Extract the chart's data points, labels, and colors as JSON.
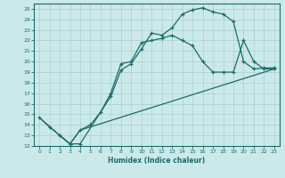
{
  "xlabel": "Humidex (Indice chaleur)",
  "xlim": [
    -0.5,
    23.5
  ],
  "ylim": [
    12,
    25.5
  ],
  "xticks": [
    0,
    1,
    2,
    3,
    4,
    5,
    6,
    7,
    8,
    9,
    10,
    11,
    12,
    13,
    14,
    15,
    16,
    17,
    18,
    19,
    20,
    21,
    22,
    23
  ],
  "yticks": [
    12,
    13,
    14,
    15,
    16,
    17,
    18,
    19,
    20,
    21,
    22,
    23,
    24,
    25
  ],
  "bg_color": "#cce9e9",
  "grid_color": "#aad0d0",
  "line_color": "#1a6b6b",
  "line1_x": [
    0,
    1,
    2,
    3,
    4,
    7,
    8,
    9,
    10,
    11,
    12,
    13,
    14,
    15,
    16,
    17,
    18,
    19,
    20,
    21,
    22,
    23
  ],
  "line1_y": [
    14.7,
    13.8,
    13.0,
    12.2,
    12.2,
    16.7,
    19.2,
    19.8,
    21.2,
    22.7,
    22.5,
    23.2,
    24.5,
    24.9,
    25.1,
    24.7,
    24.5,
    23.8,
    20.0,
    19.3,
    19.4,
    19.4
  ],
  "line2_x": [
    2,
    3,
    4,
    5,
    6,
    7,
    8,
    9,
    10,
    11,
    12,
    13,
    14,
    15,
    16,
    17,
    18,
    19,
    20,
    21,
    22,
    23
  ],
  "line2_y": [
    13.0,
    12.2,
    13.5,
    14.0,
    15.2,
    17.0,
    19.8,
    20.0,
    21.8,
    22.0,
    22.2,
    22.5,
    22.0,
    21.5,
    20.0,
    19.0,
    19.0,
    19.0,
    22.0,
    20.0,
    19.3,
    19.3
  ],
  "line3_x": [
    0,
    2,
    3,
    4,
    23
  ],
  "line3_y": [
    14.7,
    13.0,
    12.2,
    13.5,
    19.3
  ]
}
